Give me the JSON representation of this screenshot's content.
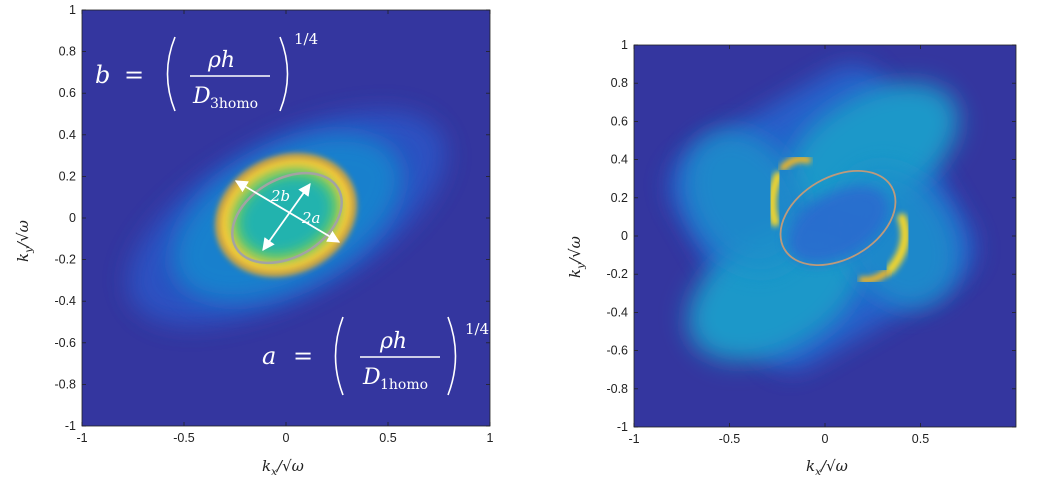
{
  "chart_data": [
    {
      "type": "heatmap",
      "panel": "left",
      "xlim": [
        -1,
        1
      ],
      "ylim": [
        -1,
        1
      ],
      "xticks": [
        "-1",
        "-0.5",
        "0",
        "0.5",
        "1"
      ],
      "yticks": [
        "1",
        "0.8",
        "0.6",
        "0.4",
        "0.2",
        "0",
        "-0.2",
        "-0.4",
        "-0.6",
        "-0.8",
        "-1"
      ],
      "xlabel": {
        "main": "k",
        "sub": "x",
        "sep": "/",
        "sqrt": "ω"
      },
      "ylabel": {
        "main": "k",
        "sub": "y",
        "sep": "/",
        "sqrt": "ω"
      },
      "colormap": [
        "#3a39a6",
        "#2471d9",
        "#15b0b8",
        "#5fcf6a",
        "#f6d72a",
        "#f7a51f"
      ],
      "background_color": "#34369f",
      "ellipse": {
        "cx": 0,
        "cy": 0,
        "rx": 0.29,
        "ry": 0.19,
        "angle_deg": -30,
        "color": "#a3a3a3"
      },
      "arrows": [
        {
          "label": "2b",
          "from": [
            -0.1,
            -0.17
          ],
          "to": [
            0.1,
            0.17
          ]
        },
        {
          "label": "2a",
          "from": [
            -0.25,
            0.15
          ],
          "to": [
            0.25,
            -0.15
          ]
        }
      ],
      "annotations": [
        {
          "lhs": "b",
          "eq": "=",
          "num": "ρh",
          "den_main": "D",
          "den_sub": "3homo",
          "exp": "1/4"
        },
        {
          "lhs": "a",
          "eq": "=",
          "num": "ρh",
          "den_main": "D",
          "den_sub": "1homo",
          "exp": "1/4"
        }
      ]
    },
    {
      "type": "heatmap",
      "panel": "right",
      "xlim": [
        -1,
        1
      ],
      "ylim": [
        -1,
        1
      ],
      "xticks": [
        "-1",
        "-0.5",
        "0",
        "0.5"
      ],
      "yticks": [
        "1",
        "0.8",
        "0.6",
        "0.4",
        "0.2",
        "0",
        "-0.2",
        "-0.4",
        "-0.6",
        "-0.8",
        "-1"
      ],
      "xlabel": {
        "main": "k",
        "sub": "x",
        "sep": "/",
        "sqrt": "ω"
      },
      "ylabel": {
        "main": "k",
        "sub": "y",
        "sep": "/",
        "sqrt": "ω"
      },
      "colormap": [
        "#3a39a6",
        "#2471d9",
        "#15b0b8",
        "#5fcf6a",
        "#f6d72a",
        "#f7a51f"
      ],
      "background_color": "#34369f",
      "ellipse": {
        "cx": 0,
        "cy": 0,
        "rx": 0.3,
        "ry": 0.2,
        "angle_deg": -30,
        "color": "#bd9a7c"
      }
    }
  ]
}
